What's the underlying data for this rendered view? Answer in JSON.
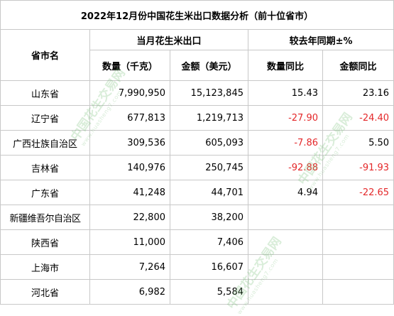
{
  "title": "2022年12月份中国花生米出口数据分析（前十位省市）",
  "headers": {
    "province": "省市名",
    "group_current": "当月花生米出口",
    "group_yoy": "较去年同期±%",
    "qty": "数量（千克）",
    "amount": "金额（美元）",
    "qty_yoy": "数量同比",
    "amount_yoy": "金额同比"
  },
  "rows": [
    {
      "province": "山东省",
      "qty": "7,990,950",
      "amount": "15,123,845",
      "qty_yoy": "15.43",
      "amount_yoy": "23.16"
    },
    {
      "province": "辽宁省",
      "qty": "677,813",
      "amount": "1,219,713",
      "qty_yoy": "-27.90",
      "amount_yoy": "-24.40"
    },
    {
      "province": "广西壮族自治区",
      "qty": "309,536",
      "amount": "605,093",
      "qty_yoy": "-7.86",
      "amount_yoy": "5.50"
    },
    {
      "province": "吉林省",
      "qty": "140,976",
      "amount": "250,745",
      "qty_yoy": "-92.88",
      "amount_yoy": "-91.93"
    },
    {
      "province": "广东省",
      "qty": "41,248",
      "amount": "44,701",
      "qty_yoy": "4.94",
      "amount_yoy": "-22.65"
    },
    {
      "province": "新疆维吾尔自治区",
      "qty": "22,800",
      "amount": "38,200",
      "qty_yoy": "",
      "amount_yoy": ""
    },
    {
      "province": "陕西省",
      "qty": "11,000",
      "amount": "7,406",
      "qty_yoy": "",
      "amount_yoy": ""
    },
    {
      "province": "上海市",
      "qty": "7,264",
      "amount": "16,607",
      "qty_yoy": "",
      "amount_yoy": ""
    },
    {
      "province": "河北省",
      "qty": "6,982",
      "amount": "5,584",
      "qty_yoy": "",
      "amount_yoy": ""
    }
  ],
  "colors": {
    "negative": "#e4282a",
    "border": "#c8c8c8",
    "watermark": "#78be78"
  },
  "watermark": {
    "cn": "中国花生交易网",
    "url": "www.huasheng7.com"
  }
}
